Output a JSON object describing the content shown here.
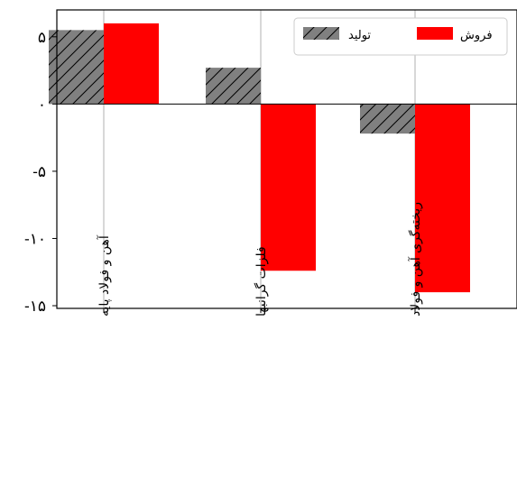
{
  "chart_data": {
    "type": "bar",
    "categories": [
      "آهن و فولاد پایه",
      "فلزات گرانبها",
      "ریخته‌گری آهن و فولاد"
    ],
    "series": [
      {
        "name": "تولید",
        "values": [
          5.5,
          2.7,
          -2.2
        ],
        "color": "#808080",
        "pattern": "hatch"
      },
      {
        "name": "فروش",
        "values": [
          6.0,
          -12.4,
          -14.0
        ],
        "color": "#ff0000",
        "pattern": "solid"
      }
    ],
    "yticks": [
      5,
      0,
      -5,
      -10,
      -15
    ],
    "ytick_labels": [
      "۵",
      "۰",
      "-۵",
      "-۱۰",
      "-۱۵"
    ],
    "ylim": [
      -15.2,
      7.0
    ],
    "grid": "x",
    "legend_position": "top-right"
  }
}
